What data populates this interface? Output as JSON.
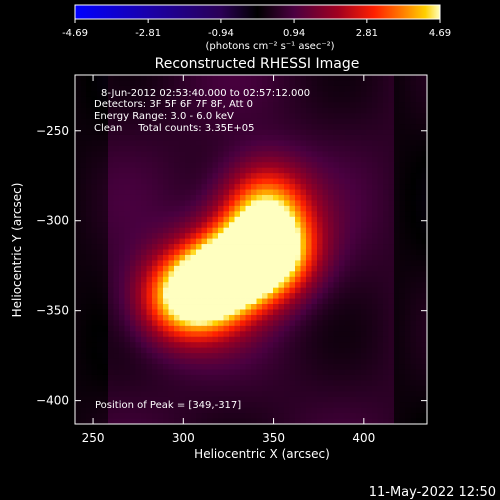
{
  "colorbar": {
    "tick_labels": [
      "-4.69",
      "-2.81",
      "-0.94",
      "0.94",
      "2.81",
      "4.69"
    ],
    "tick_values": [
      -4.69,
      -2.81,
      -0.94,
      0.94,
      2.81,
      4.69
    ],
    "range": [
      -4.69,
      4.69
    ],
    "units": "(photons cm⁻² s⁻¹ asec⁻²)",
    "colormap": [
      "#0000ff",
      "#1a00aa",
      "#2a0055",
      "#000000",
      "#4a0040",
      "#a00020",
      "#ff2000",
      "#ff8000",
      "#ffd000",
      "#ffffc0"
    ]
  },
  "chart_data": {
    "type": "heatmap",
    "title": "Reconstructed RHESSI Image",
    "xlabel": "Heliocentric X (arcsec)",
    "ylabel": "Heliocentric Y (arcsec)",
    "xlim": [
      240,
      435
    ],
    "ylim": [
      -413,
      -219
    ],
    "x_ticks": [
      250,
      300,
      350,
      400
    ],
    "y_ticks": [
      -250,
      -300,
      -350,
      -400
    ],
    "x_tick_labels": [
      "250",
      "300",
      "350",
      "400"
    ],
    "y_tick_labels": [
      "−250",
      "−300",
      "−350",
      "−400"
    ],
    "annotations": [
      "8-Jun-2012 02:53:40.000 to 02:57:12.000",
      "Detectors: 3F 5F 6F 7F 8F, Att 0",
      "Energy Range: 3.0 - 6.0 keV",
      "Clean     Total counts: 3.35E+05"
    ],
    "peak_label": "Position of Peak = [349,-317]",
    "peak": [
      349,
      -317
    ],
    "sources": [
      {
        "x": 349,
        "y": -317,
        "amp": 4.69
      },
      {
        "x": 312,
        "y": -338,
        "amp": 4.2
      },
      {
        "x": 330,
        "y": -325,
        "amp": 3.8
      },
      {
        "x": 345,
        "y": -290,
        "amp": 3.0
      },
      {
        "x": 295,
        "y": -345,
        "amp": 2.4
      }
    ]
  },
  "footer": {
    "timestamp": "11-May-2022 12:50"
  }
}
